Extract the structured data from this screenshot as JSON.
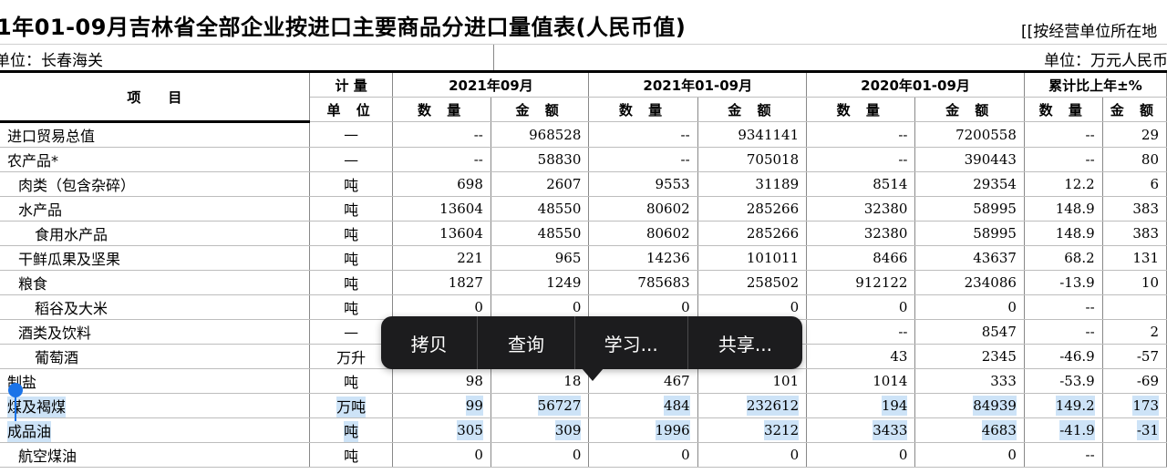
{
  "title": "1年01-09月吉林省全部企业按进口主要商品分进口量值表(人民币值)",
  "title_right": "[[按经营单位所在地",
  "unit_left": "单位：长春海关",
  "unit_right": "单位：万元人民币",
  "header": {
    "item": "项　　目",
    "measure": "计 量",
    "unit": "单 位",
    "period1": "2021年09月",
    "period2": "2021年01-09月",
    "period3": "2020年01-09月",
    "period4": "累计比上年±%",
    "qty": "数 量",
    "amt": "金 额"
  },
  "rows": [
    {
      "name": "进口贸易总值",
      "unit": "—",
      "v": [
        "--",
        "968528",
        "--",
        "9341141",
        "--",
        "7200558",
        "--",
        "29"
      ]
    },
    {
      "name": "农产品*",
      "unit": "—",
      "v": [
        "--",
        "58830",
        "--",
        "705018",
        "--",
        "390443",
        "--",
        "80"
      ]
    },
    {
      "name": "肉类（包含杂碎）",
      "unit": "吨",
      "v": [
        "698",
        "2607",
        "9553",
        "31189",
        "8514",
        "29354",
        "12.2",
        "6"
      ]
    },
    {
      "name": "水产品",
      "unit": "吨",
      "v": [
        "13604",
        "48550",
        "80602",
        "285266",
        "32380",
        "58995",
        "148.9",
        "383"
      ]
    },
    {
      "name": "食用水产品",
      "unit": "吨",
      "v": [
        "13604",
        "48550",
        "80602",
        "285266",
        "32380",
        "58995",
        "148.9",
        "383"
      ]
    },
    {
      "name": "干鲜瓜果及坚果",
      "unit": "吨",
      "v": [
        "221",
        "965",
        "14236",
        "101011",
        "8466",
        "43637",
        "68.2",
        "131"
      ]
    },
    {
      "name": "粮食",
      "unit": "吨",
      "v": [
        "1827",
        "1249",
        "785683",
        "258502",
        "912122",
        "234086",
        "-13.9",
        "10"
      ]
    },
    {
      "name": "稻谷及大米",
      "unit": "吨",
      "v": [
        "0",
        "0",
        "0",
        "0",
        "0",
        "0",
        "--",
        ""
      ]
    },
    {
      "name": "酒类及饮料",
      "unit": "—",
      "v": [
        "",
        "",
        "",
        "",
        "--",
        "8547",
        "--",
        "2"
      ]
    },
    {
      "name": "葡萄酒",
      "unit": "万升",
      "v": [
        "",
        "",
        "",
        "",
        "43",
        "2345",
        "-46.9",
        "-57"
      ]
    },
    {
      "name": "制盐",
      "unit": "吨",
      "v": [
        "98",
        "18",
        "467",
        "101",
        "1014",
        "333",
        "-53.9",
        "-69"
      ]
    },
    {
      "name": "煤及褐煤",
      "unit": "万吨",
      "v": [
        "99",
        "56727",
        "484",
        "232612",
        "194",
        "84939",
        "149.2",
        "173"
      ]
    },
    {
      "name": "成品油",
      "unit": "吨",
      "v": [
        "305",
        "309",
        "1996",
        "3212",
        "3433",
        "4683",
        "-41.9",
        "-31"
      ]
    },
    {
      "name": "航空煤油",
      "unit": "吨",
      "v": [
        "0",
        "0",
        "0",
        "0",
        "0",
        "0",
        "--",
        ""
      ]
    }
  ],
  "popup": {
    "copy": "拷贝",
    "lookup": "查询",
    "learn": "学习...",
    "share": "共享..."
  },
  "colors": {
    "selection": "#cde3f7",
    "handle": "#1a73e8",
    "popup_bg": "#1c1c1e"
  }
}
